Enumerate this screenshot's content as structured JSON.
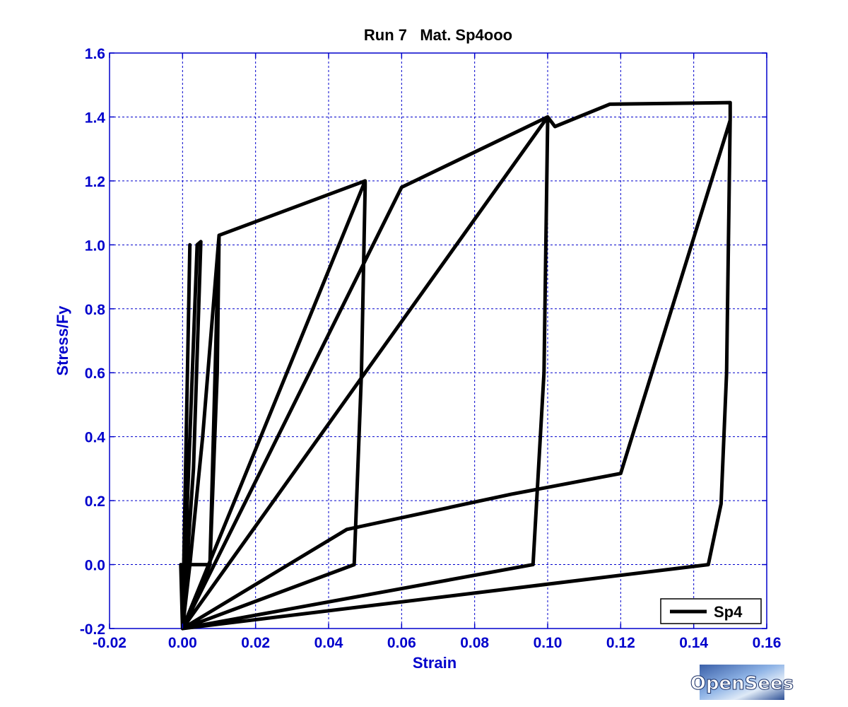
{
  "chart_data": {
    "type": "line",
    "title": "Run 7   Mat. Sp4ooo",
    "xlabel": "Strain",
    "ylabel": "Stress/Fy",
    "xlim": [
      -0.02,
      0.16
    ],
    "ylim": [
      -0.2,
      1.6
    ],
    "xticks": [
      -0.02,
      0.0,
      0.02,
      0.04,
      0.06,
      0.08,
      0.1,
      0.12,
      0.14,
      0.16
    ],
    "xtick_labels": [
      "-0.02",
      "0.00",
      "0.02",
      "0.04",
      "0.06",
      "0.08",
      "0.10",
      "0.12",
      "0.14",
      "0.16"
    ],
    "yticks": [
      -0.2,
      0.0,
      0.2,
      0.4,
      0.6,
      0.8,
      1.0,
      1.2,
      1.4,
      1.6
    ],
    "ytick_labels": [
      "-0.2",
      "0.0",
      "0.2",
      "0.4",
      "0.6",
      "0.8",
      "1.0",
      "1.2",
      "1.4",
      "1.6"
    ],
    "grid": true,
    "legend_position": "bottom-right",
    "series": [
      {
        "name": "Sp4",
        "color": "#000000",
        "x": [
          0.0,
          0.002,
          0.0,
          -0.0005,
          0.0,
          0.002,
          0.004,
          0.005,
          0.003,
          0.0,
          0.002,
          0.0055,
          0.01,
          0.0095,
          0.0075,
          0.0,
          0.0,
          0.0075,
          0.0095,
          0.01,
          0.05,
          0.05,
          0.049,
          0.047,
          0.0,
          0.0,
          0.05,
          0.0,
          0.0,
          0.06,
          0.1,
          0.1,
          0.099,
          0.096,
          0.0,
          0.0,
          0.1,
          0.102,
          0.117,
          0.15,
          0.15,
          0.149,
          0.1475,
          0.144,
          0.0,
          0.0,
          0.045,
          0.09,
          0.12,
          0.15
        ],
        "y": [
          -0.2,
          1.0,
          -0.2,
          0.0,
          -0.2,
          0.4,
          1.0,
          1.01,
          0.3,
          -0.2,
          0.0,
          0.4,
          1.03,
          0.6,
          0.0,
          -0.2,
          0.0,
          0.0,
          0.85,
          1.03,
          1.2,
          1.18,
          0.6,
          0.0,
          -0.2,
          -0.2,
          1.2,
          -0.2,
          -0.2,
          1.18,
          1.4,
          1.39,
          0.6,
          0.0,
          -0.2,
          -0.2,
          1.4,
          1.37,
          1.44,
          1.445,
          1.4,
          0.6,
          0.19,
          0.0,
          -0.2,
          -0.2,
          0.11,
          0.22,
          0.285,
          1.39
        ]
      }
    ]
  },
  "logo": {
    "text": "OpenSees"
  }
}
